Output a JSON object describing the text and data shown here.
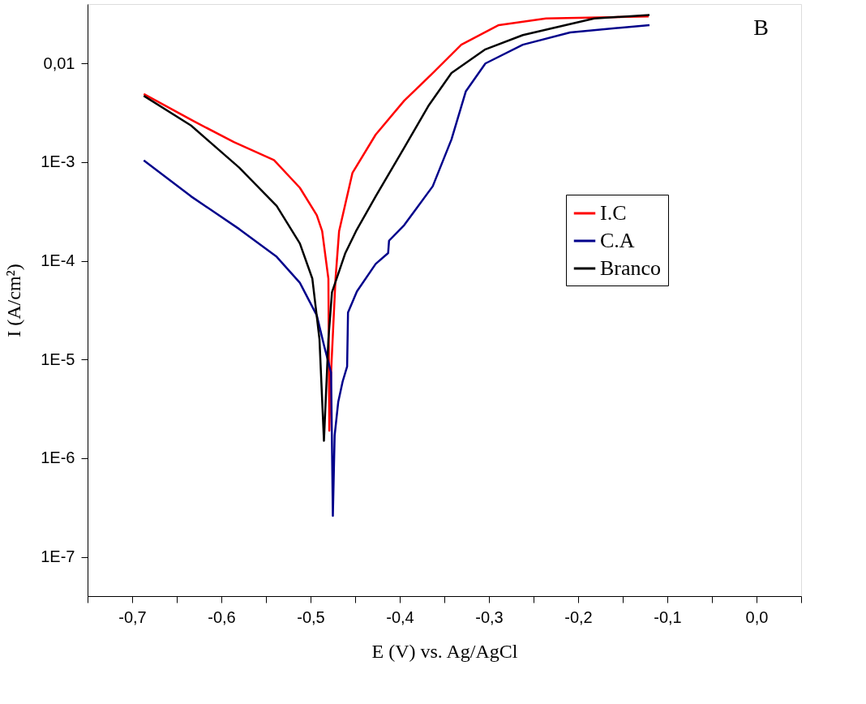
{
  "chart_data": {
    "type": "line",
    "xlabel": "E (V) vs. Ag/AgCl",
    "ylabel": "I (A/cm²)",
    "annotations": [
      "B"
    ],
    "log": "y",
    "legend": "right",
    "grid": false,
    "xlim": [
      -0.75,
      0.05
    ],
    "ylim": [
      4e-08,
      0.04
    ],
    "xticks": [
      {
        "value": -0.75,
        "label": null
      },
      {
        "value": -0.7,
        "label": "-0,7"
      },
      {
        "value": -0.65,
        "label": null
      },
      {
        "value": -0.6,
        "label": "-0,6"
      },
      {
        "value": -0.55,
        "label": null
      },
      {
        "value": -0.5,
        "label": "-0,5"
      },
      {
        "value": -0.45,
        "label": null
      },
      {
        "value": -0.4,
        "label": "-0,4"
      },
      {
        "value": -0.35,
        "label": null
      },
      {
        "value": -0.3,
        "label": "-0,3"
      },
      {
        "value": -0.25,
        "label": null
      },
      {
        "value": -0.2,
        "label": "-0,2"
      },
      {
        "value": -0.15,
        "label": null
      },
      {
        "value": -0.1,
        "label": "-0,1"
      },
      {
        "value": -0.05,
        "label": null
      },
      {
        "value": 0.0,
        "label": "0,0"
      },
      {
        "value": 0.05,
        "label": null
      }
    ],
    "yticks": [
      {
        "value": 1e-07,
        "label": "1E-7"
      },
      {
        "value": 1e-06,
        "label": "1E-6"
      },
      {
        "value": 1e-05,
        "label": "1E-5"
      },
      {
        "value": 0.0001,
        "label": "1E-4"
      },
      {
        "value": 0.001,
        "label": "1E-3"
      },
      {
        "value": 0.01,
        "label": "0,01"
      }
    ],
    "series": [
      {
        "name": "I.C",
        "color": "#ff0000",
        "x": [
          -0.687,
          -0.631,
          -0.586,
          -0.541,
          -0.512,
          -0.493,
          -0.487,
          -0.48,
          -0.479,
          -0.477,
          -0.472,
          -0.468,
          -0.453,
          -0.427,
          -0.395,
          -0.363,
          -0.331,
          -0.289,
          -0.236,
          -0.121
        ],
        "values": [
          0.0049,
          0.0026,
          0.0016,
          0.00105,
          0.00055,
          0.00029,
          0.0002,
          6.6e-05,
          1.9e-06,
          7.4e-06,
          6.6e-05,
          0.0002,
          0.00078,
          0.0019,
          0.0042,
          0.008,
          0.0155,
          0.0245,
          0.0286,
          0.03
        ]
      },
      {
        "name": "C.A",
        "color": "#00008b",
        "x": [
          -0.687,
          -0.634,
          -0.58,
          -0.538,
          -0.512,
          -0.493,
          -0.485,
          -0.477,
          -0.475,
          -0.473,
          -0.469,
          -0.464,
          -0.459,
          -0.458,
          -0.448,
          -0.427,
          -0.413,
          -0.412,
          -0.395,
          -0.363,
          -0.342,
          -0.326,
          -0.304,
          -0.262,
          -0.209,
          -0.12
        ],
        "values": [
          0.00104,
          0.00045,
          0.00021,
          0.00011,
          6e-05,
          2.8e-05,
          1.4e-05,
          7.4e-06,
          2.6e-07,
          1.7e-06,
          3.7e-06,
          6e-06,
          8.5e-06,
          3e-05,
          4.9e-05,
          9.3e-05,
          0.00012,
          0.00016,
          0.00023,
          0.00057,
          0.0017,
          0.0052,
          0.01,
          0.0155,
          0.0206,
          0.0245
        ]
      },
      {
        "name": "Branco",
        "color": "#000000",
        "x": [
          -0.687,
          -0.634,
          -0.58,
          -0.538,
          -0.512,
          -0.498,
          -0.49,
          -0.485,
          -0.48,
          -0.476,
          -0.461,
          -0.449,
          -0.427,
          -0.395,
          -0.368,
          -0.342,
          -0.304,
          -0.262,
          -0.182,
          -0.12
        ],
        "values": [
          0.0047,
          0.00235,
          0.00088,
          0.00036,
          0.00015,
          6.6e-05,
          1.6e-05,
          1.5e-06,
          1.6e-05,
          4.8e-05,
          0.00012,
          0.0002,
          0.00045,
          0.0014,
          0.0037,
          0.008,
          0.0139,
          0.0194,
          0.0286,
          0.031
        ]
      }
    ]
  }
}
